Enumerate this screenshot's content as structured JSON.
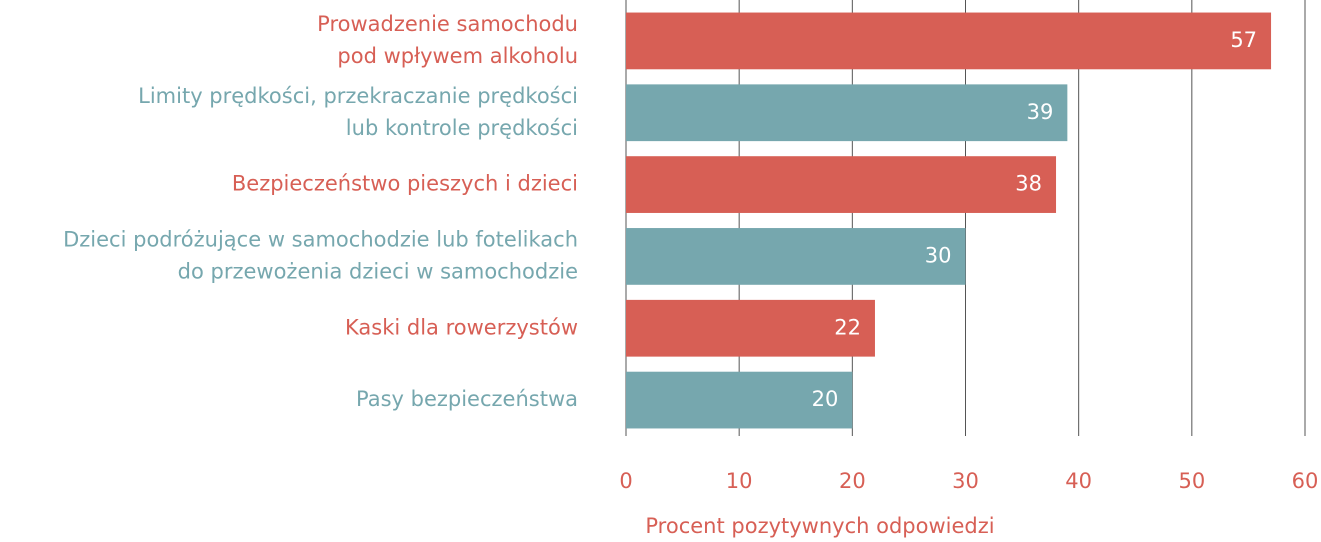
{
  "chart_data": {
    "type": "barh",
    "categories": [
      [
        "Prowadzenie samochodu",
        "pod wpływem alkoholu"
      ],
      [
        "Limity prędkości, przekraczanie prędkości",
        "lub kontrole prędkości"
      ],
      [
        "Bezpieczeństwo pieszych i dzieci"
      ],
      [
        "Dzieci podróżujące w samochodzie lub fotelikach",
        "do przewożenia dzieci w samochodzie"
      ],
      [
        "Kaski dla rowerzystów"
      ],
      [
        "Pasy bezpieczeństwa"
      ]
    ],
    "values": [
      57,
      39,
      38,
      30,
      22,
      20
    ],
    "colors": [
      "#d75f55",
      "#76a7ae",
      "#d75f55",
      "#76a7ae",
      "#d75f55",
      "#76a7ae"
    ],
    "xlabel": "Procent pozytywnych odpowiedzi",
    "xlim": [
      0,
      60
    ],
    "xticks": [
      0,
      10,
      20,
      30,
      40,
      50,
      60
    ],
    "grid": true,
    "tick_color": "#d75f55"
  }
}
